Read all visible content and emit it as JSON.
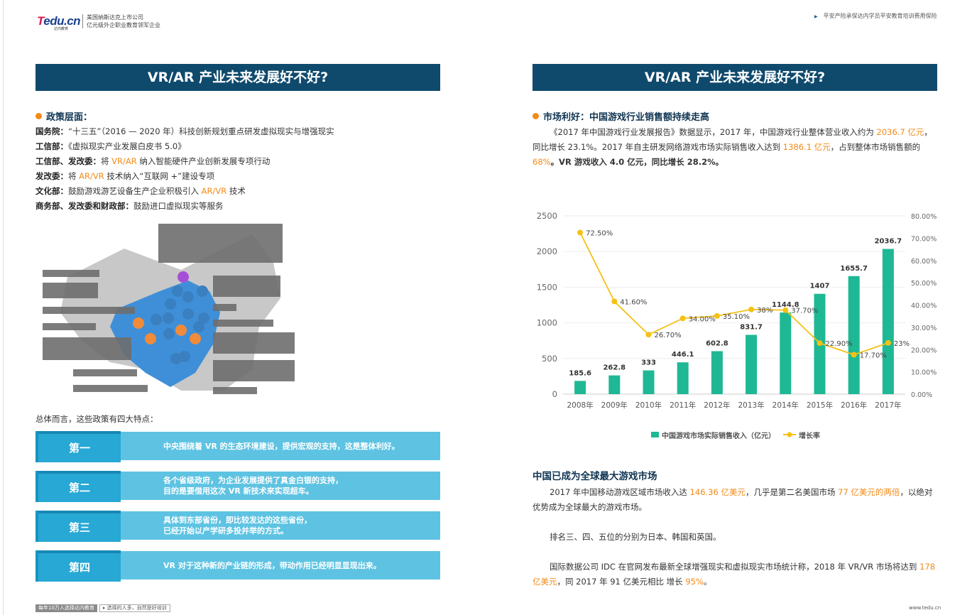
{
  "header": {
    "logo": "Tedu.cn",
    "logo_sub": "达内教育",
    "tagline_1": "美国纳斯达克上市公司",
    "tagline_2": "亿元级外企职业教育领军企业",
    "right_text": "平安产险承保达内学员平安教育培训费用保险"
  },
  "left": {
    "title": "VR/AR 产业未来发展好不好?",
    "section": "政策层面：",
    "policies": [
      {
        "who": "国务院：",
        "pre": "“十三五”（2016 — 2020 年）科技创新规划重点研发虚拟现实与增强现实",
        "hl": "",
        "post": ""
      },
      {
        "who": "工信部：",
        "pre": "《虚拟现实产业发展白皮书 5.0》",
        "hl": "",
        "post": ""
      },
      {
        "who": "工信部、发改委：",
        "pre": "将 ",
        "hl": "VR/AR",
        "post": " 纳入智能硬件产业创新发展专项行动"
      },
      {
        "who": "发改委：",
        "pre": "将 ",
        "hl": "AR/VR",
        "post": " 技术纳入“互联网 +”建设专项"
      },
      {
        "who": "文化部：",
        "pre": "鼓励游戏游艺设备生产企业积极引入 ",
        "hl": "AR/VR",
        "post": " 技术"
      },
      {
        "who": "商务部、发改委和财政部：",
        "pre": "鼓励进口虚拟现实等服务",
        "hl": "",
        "post": ""
      }
    ],
    "summary": "总体而言，这些政策有四大特点：",
    "features": [
      {
        "label": "第一",
        "lines": [
          "中央围绕着 VR 的生态环境建设，提供宏观的支持，这是整体利好。"
        ]
      },
      {
        "label": "第二",
        "lines": [
          "各个省级政府，为企业发展提供了真金白银的支持，",
          "目的是要借用这次 VR 新技术来实现超车。"
        ]
      },
      {
        "label": "第三",
        "lines": [
          "具体到东部省份，即比较发达的这些省份，",
          "已经开始以产学研多投并举的方式。"
        ]
      },
      {
        "label": "第四",
        "lines": [
          "VR 对于这种新的产业链的形成，带动作用已经明显显现出来。"
        ]
      }
    ]
  },
  "right": {
    "title": "VR/AR 产业未来发展好不好?",
    "section": "市场利好：中国游戏行业销售额持续走高",
    "p1": [
      {
        "t": "《2017 年中国游戏行业发展报告》数据显示，2017 年，中国游戏行业整体营业收入约为 ",
        "c": ""
      },
      {
        "t": "2036.7 亿元",
        "c": "or"
      },
      {
        "t": "，同比增长 23.1%。2017 年自主研发网络游戏市场实际销售收入达到 ",
        "c": ""
      },
      {
        "t": "1386.1 亿元",
        "c": "or"
      },
      {
        "t": "，占到整体市场销售额的 ",
        "c": ""
      },
      {
        "t": "68%",
        "c": "or"
      },
      {
        "t": "。VR 游戏收入 4.0 亿元，同比增长 28.2%。",
        "c": "b"
      }
    ],
    "section2": "中国已成为全球最大游戏市场",
    "p2": [
      {
        "t": "2017 年中国移动游戏区域市场收入达 ",
        "c": ""
      },
      {
        "t": "146.36 亿美元",
        "c": "or"
      },
      {
        "t": "，几乎是第二名美国市场 ",
        "c": ""
      },
      {
        "t": "77 亿美元的两倍",
        "c": "or"
      },
      {
        "t": "，以绝对优势成为全球最大的游戏市场。",
        "c": ""
      }
    ],
    "p3": "排名三、四、五位的分别为日本、韩国和英国。",
    "p4": [
      {
        "t": "国际数据公司 IDC 在官网发布最新全球增强现实和虚拟现实市场统计称，2018 年 VR/VR 市场将达到 ",
        "c": ""
      },
      {
        "t": "178 亿美元",
        "c": "or"
      },
      {
        "t": "，同 2017 年 91 亿美元相比 增长 ",
        "c": ""
      },
      {
        "t": "95%",
        "c": "or"
      },
      {
        "t": "。",
        "c": ""
      }
    ]
  },
  "chart_data": {
    "type": "bar+line",
    "categories": [
      "2008年",
      "2009年",
      "2010年",
      "2011年",
      "2012年",
      "2013年",
      "2014年",
      "2015年",
      "2016年",
      "2017年"
    ],
    "series": [
      {
        "name": "中国游戏市场实际销售收入（亿元）",
        "type": "bar",
        "axis": "left",
        "color": "#1fb894",
        "values": [
          185.6,
          262.8,
          333,
          446.1,
          602.8,
          831.7,
          1144.8,
          1407,
          1655.7,
          2036.7
        ],
        "labels": [
          "185.6",
          "262.8",
          "333",
          "446.1",
          "602.8",
          "831.7",
          "1144.8",
          "1407",
          "1655.7",
          "2036.7"
        ]
      },
      {
        "name": "增长率",
        "type": "line",
        "axis": "right",
        "color": "#f5c115",
        "values": [
          72.5,
          41.6,
          26.7,
          34.0,
          35.1,
          38,
          37.7,
          22.9,
          17.7,
          23
        ],
        "labels": [
          "72.50%",
          "41.60%",
          "26.70%",
          "34.00%",
          "35.10%",
          "38%",
          "37.70%",
          "22.90%",
          "17.70%",
          "23%"
        ]
      }
    ],
    "ylim_left": [
      0,
      2500
    ],
    "yticks_left": [
      "0",
      "500",
      "1000",
      "1500",
      "2000",
      "2500"
    ],
    "ylim_right": [
      0,
      80
    ],
    "yticks_right": [
      "0.00%",
      "10.00%",
      "20.00%",
      "30.00%",
      "40.00%",
      "50.00%",
      "60.00%",
      "70.00%",
      "80.00%"
    ],
    "grid": true,
    "legend": "bottom"
  },
  "footer": {
    "left_a": "每年10万人选择达内教育",
    "left_b": "选择的人多，自然是好培训",
    "right": "www.tedu.cn"
  }
}
